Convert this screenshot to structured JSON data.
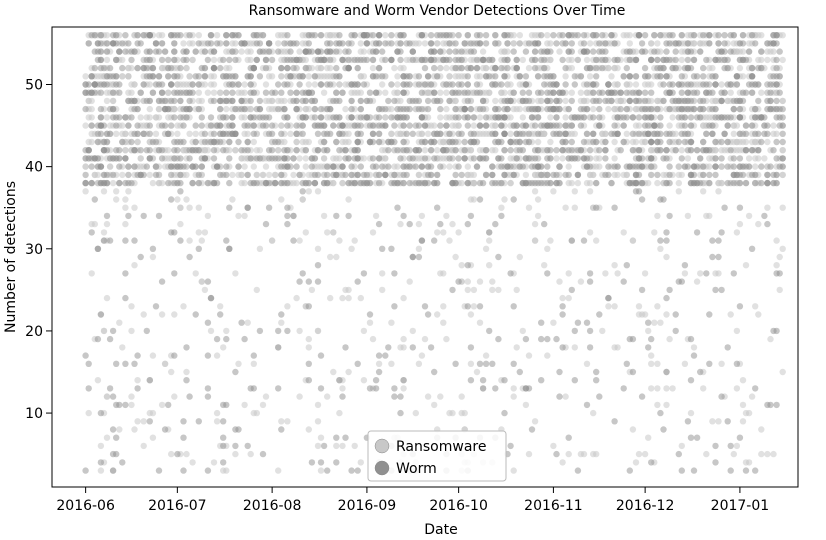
{
  "chart_data": {
    "type": "scatter",
    "title": "Ransomware and Worm Vendor Detections Over Time",
    "xlabel": "Date",
    "ylabel": "Number of detections",
    "x_ticks": [
      "2016-06",
      "2016-07",
      "2016-08",
      "2016-09",
      "2016-10",
      "2016-11",
      "2016-12",
      "2017-01"
    ],
    "y_ticks": [
      10,
      20,
      30,
      40,
      50
    ],
    "xlim": [
      "2016-05-21",
      "2017-01-20"
    ],
    "ylim": [
      1,
      57
    ],
    "grid": false,
    "legend_position": "bottom-center",
    "series": [
      {
        "name": "Ransomware",
        "color": "#c8c8c8",
        "marker": "circle",
        "x_range": [
          "2016-06-01",
          "2017-01-15"
        ],
        "y_range": [
          3,
          56
        ],
        "density": "dense band 38-56 detections, sparse scatter 3-37",
        "count": 2600
      },
      {
        "name": "Worm",
        "color": "#909090",
        "marker": "circle",
        "x_range": [
          "2016-06-01",
          "2017-01-15"
        ],
        "y_range": [
          3,
          56
        ],
        "density": "dense band 38-56 detections, sparse scatter 3-37",
        "count": 2200
      }
    ]
  }
}
